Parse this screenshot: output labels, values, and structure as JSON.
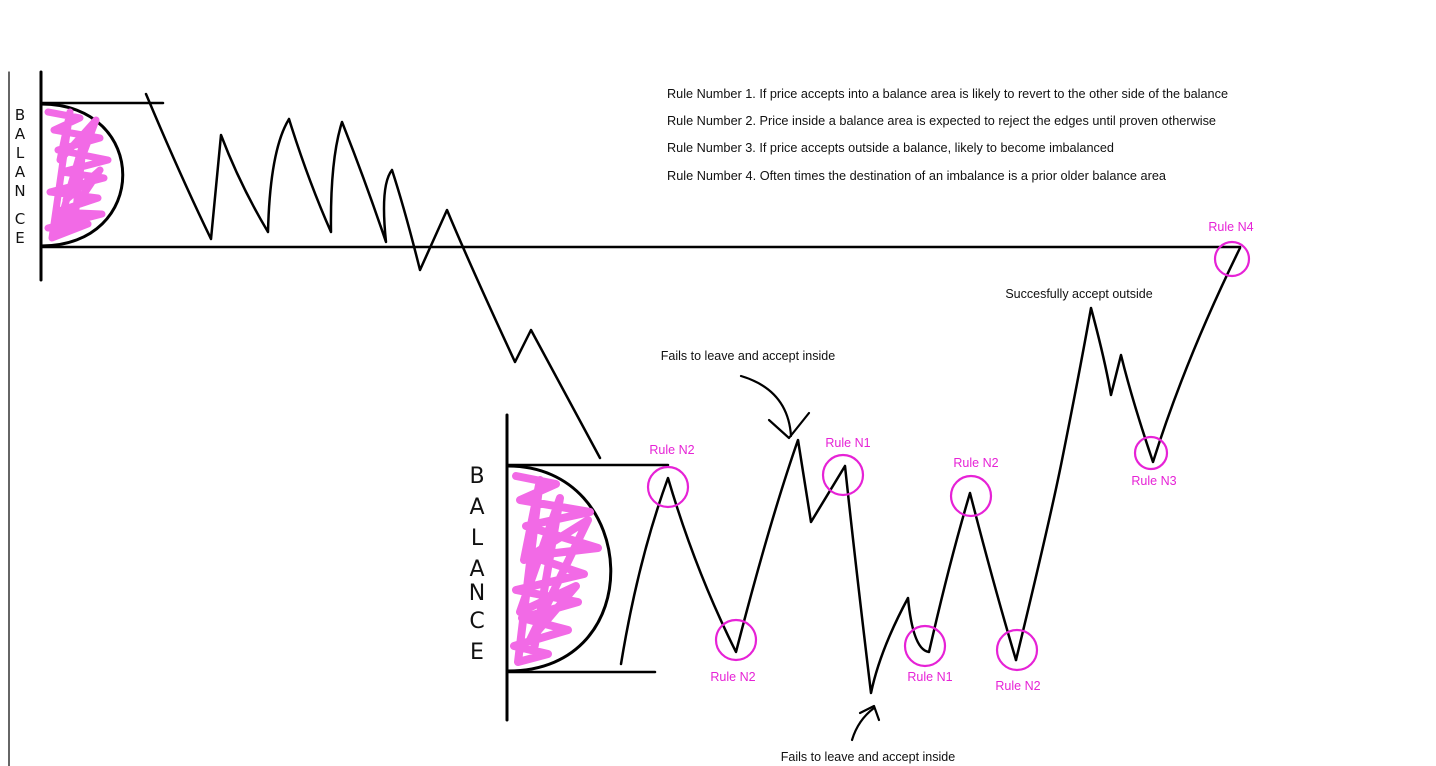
{
  "rules": [
    "Rule Number 1. If price accepts into a balance area is likely to revert to the other side of the balance",
    "Rule Number 2. Price inside a balance area is expected to reject the edges until proven otherwise",
    "Rule Number 3. If price accepts outside a balance, likely to become imbalanced",
    "Rule Number 4. Often times the destination of an imbalance is a prior older balance area"
  ],
  "balance_labels": {
    "top": [
      "B",
      "A",
      "L",
      "A",
      "N",
      "C",
      "E"
    ],
    "bottom": [
      "B",
      "A",
      "L",
      "A",
      "N",
      "C",
      "E"
    ]
  },
  "annotations": {
    "fails_top": "Fails to leave and accept inside",
    "fails_bottom": "Fails to leave and accept inside",
    "success": "Succesfully accept outside"
  },
  "rule_tags": {
    "n2_top_left": "Rule N2",
    "n2_low_left": "Rule N2",
    "n1_top": "Rule N1",
    "n1_low": "Rule N1",
    "n2_top_right": "Rule N2",
    "n2_low_right": "Rule N2",
    "n3": "Rule N3",
    "n4": "Rule N4"
  },
  "colors": {
    "ink": "#000000",
    "magenta": "#e622d6",
    "scribble": "#f26ae6"
  }
}
